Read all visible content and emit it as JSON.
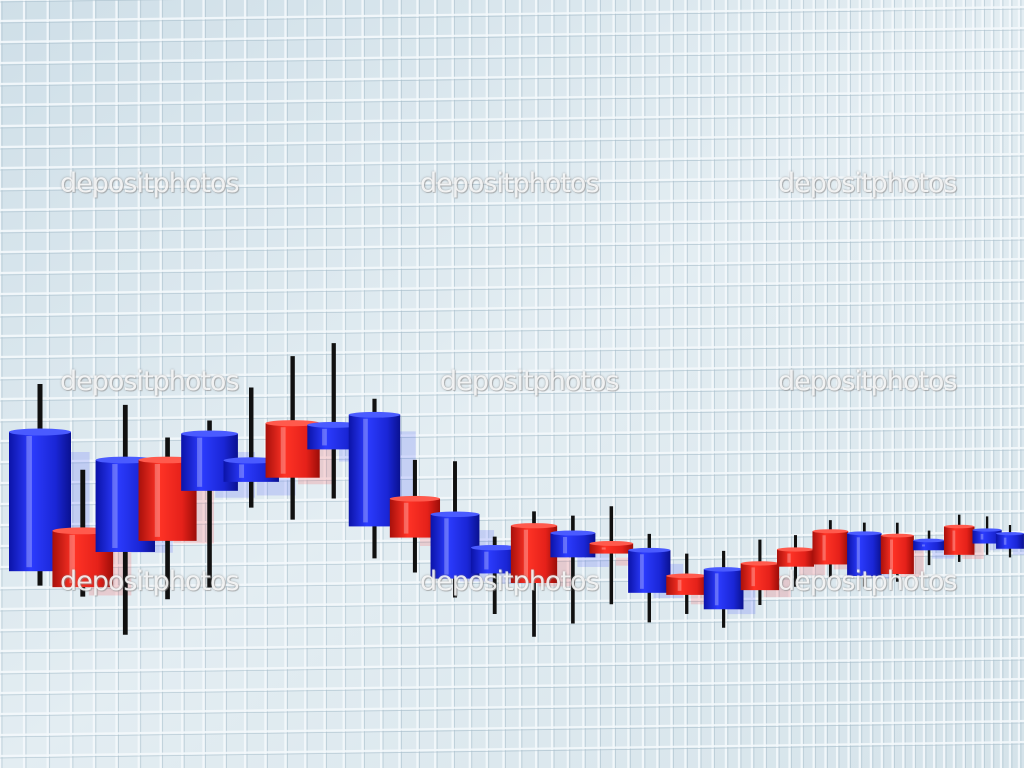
{
  "watermark": {
    "text": "depositphotos"
  },
  "colors": {
    "background": "#dce8ef",
    "grid_line": "#f4f9fc",
    "bullish_body": "#1f2fe0",
    "bearish_body": "#e8231c",
    "wick": "#101010"
  },
  "candles": [
    {
      "kind": "blue",
      "open": 9,
      "close": 6.1,
      "high": 10,
      "low": 5.8
    },
    {
      "kind": "red",
      "open": 7,
      "close": 5.8,
      "high": 8.3,
      "low": 5.6
    },
    {
      "kind": "blue",
      "open": 8.6,
      "close": 6.6,
      "high": 9.8,
      "low": 4.8
    },
    {
      "kind": "red",
      "open": 8.7,
      "close": 6.9,
      "high": 9.2,
      "low": 5.6
    },
    {
      "kind": "blue",
      "open": 9.4,
      "close": 8.1,
      "high": 9.7,
      "low": 5.9
    },
    {
      "kind": "blue",
      "open": 8.9,
      "close": 8.4,
      "high": 10.6,
      "low": 7.8
    },
    {
      "kind": "red",
      "open": 9.9,
      "close": 8.6,
      "high": 11.5,
      "low": 7.6
    },
    {
      "kind": "blue",
      "open": 10,
      "close": 9.4,
      "high": 12,
      "low": 8.2
    },
    {
      "kind": "blue",
      "open": 10.4,
      "close": 7.6,
      "high": 10.8,
      "low": 6.8
    },
    {
      "kind": "red",
      "open": 8.4,
      "close": 7.4,
      "high": 9.4,
      "low": 6.5
    },
    {
      "kind": "blue",
      "open": 8.1,
      "close": 6.4,
      "high": 9.5,
      "low": 5.9
    },
    {
      "kind": "blue",
      "open": 7.3,
      "close": 6.6,
      "high": 7.6,
      "low": 5.5
    },
    {
      "kind": "red",
      "open": 8,
      "close": 6.4,
      "high": 8.4,
      "low": 4.9
    },
    {
      "kind": "blue",
      "open": 7.9,
      "close": 7.2,
      "high": 8.4,
      "low": 5.3
    },
    {
      "kind": "red",
      "open": 7.7,
      "close": 7.4,
      "high": 8.8,
      "low": 5.9
    },
    {
      "kind": "blue",
      "open": 7.6,
      "close": 6.3,
      "high": 8.1,
      "low": 5.4
    },
    {
      "kind": "red",
      "open": 6.9,
      "close": 6.3,
      "high": 7.6,
      "low": 5.7
    },
    {
      "kind": "blue",
      "open": 7.2,
      "close": 5.9,
      "high": 7.8,
      "low": 5.3
    },
    {
      "kind": "red",
      "open": 7.5,
      "close": 6.6,
      "high": 8.3,
      "low": 6.1
    },
    {
      "kind": "red",
      "open": 8.1,
      "close": 7.5,
      "high": 8.6,
      "low": 6.8
    },
    {
      "kind": "red",
      "open": 8.9,
      "close": 7.7,
      "high": 9.3,
      "low": 7.2
    },
    {
      "kind": "blue",
      "open": 9,
      "close": 7.4,
      "high": 9.4,
      "low": 7.0
    },
    {
      "kind": "red",
      "open": 9.1,
      "close": 7.6,
      "high": 9.6,
      "low": 7.3
    },
    {
      "kind": "blue",
      "open": 9.1,
      "close": 8.7,
      "high": 9.5,
      "low": 8.1
    },
    {
      "kind": "red",
      "open": 9.9,
      "close": 8.7,
      "high": 10.4,
      "low": 8.4
    },
    {
      "kind": "blue",
      "open": 10,
      "close": 9.4,
      "high": 10.6,
      "low": 8.9
    },
    {
      "kind": "blue",
      "open": 10.1,
      "close": 9.4,
      "high": 10.5,
      "low": 9.0
    }
  ]
}
